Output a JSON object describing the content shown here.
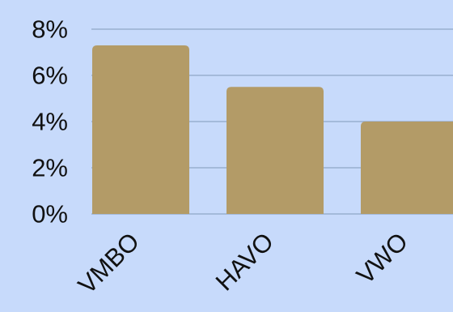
{
  "chart_data": {
    "type": "bar",
    "title": "",
    "xlabel": "",
    "ylabel": "",
    "categories": [
      "VMBO",
      "HAVO",
      "VWO"
    ],
    "values": [
      7.3,
      5.5,
      4.0
    ],
    "value_unit": "%",
    "ylim": [
      0,
      8
    ],
    "yticks": [
      0,
      2,
      4,
      6,
      8
    ],
    "ytick_labels": [
      "0%",
      "2%",
      "4%",
      "6%",
      "8%"
    ],
    "grid": true,
    "legend": "none",
    "colors": {
      "background": "#c7dafb",
      "bar": "#b39b67",
      "grid": "#8fa6c6",
      "text": "#111111"
    }
  }
}
